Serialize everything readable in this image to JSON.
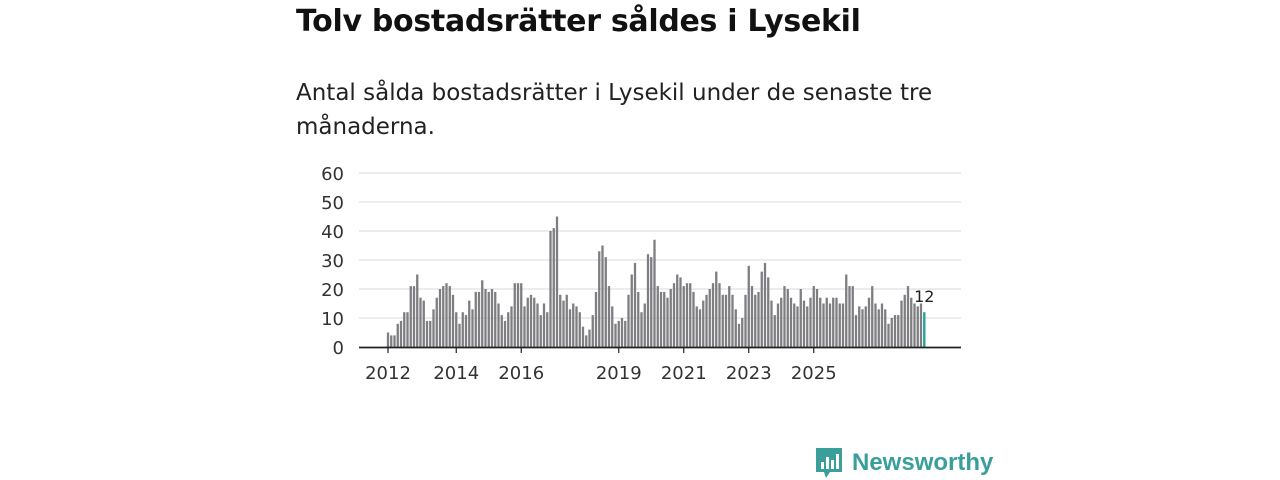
{
  "header": {
    "title": "Tolv bostadsrätter såldes i Lysekil",
    "subtitle": "Antal sålda bostadsrätter i Lysekil under de senaste tre månaderna."
  },
  "brand": {
    "name": "Newsworthy",
    "color": "#3a9f9a"
  },
  "colors": {
    "bar": "#7e7e82",
    "highlight": "#2aa198",
    "grid": "#d8d8d8",
    "axis": "#222222"
  },
  "chart_data": {
    "type": "bar",
    "title": "Tolv bostadsrätter såldes i Lysekil",
    "xlabel": "",
    "ylabel": "",
    "ylim": [
      0,
      60
    ],
    "yticks": [
      "0",
      "10",
      "20",
      "30",
      "40",
      "50",
      "60"
    ],
    "xticks": [
      {
        "label": "2012",
        "index": 0
      },
      {
        "label": "2014",
        "index": 21
      },
      {
        "label": "2016",
        "index": 41
      },
      {
        "label": "2019",
        "index": 71
      },
      {
        "label": "2021",
        "index": 91
      },
      {
        "label": "2023",
        "index": 111
      },
      {
        "label": "2025",
        "index": 131
      }
    ],
    "last_value_label": "12",
    "values": [
      5,
      4,
      4,
      8,
      9,
      12,
      12,
      21,
      21,
      25,
      17,
      16,
      9,
      9,
      13,
      17,
      20,
      21,
      22,
      21,
      18,
      12,
      8,
      12,
      11,
      16,
      13,
      19,
      19,
      23,
      20,
      19,
      20,
      19,
      15,
      11,
      9,
      12,
      14,
      22,
      22,
      22,
      14,
      17,
      18,
      17,
      15,
      11,
      15,
      12,
      40,
      41,
      45,
      18,
      16,
      18,
      13,
      15,
      14,
      12,
      7,
      4,
      6,
      11,
      19,
      33,
      35,
      31,
      21,
      14,
      8,
      9,
      10,
      9,
      18,
      25,
      29,
      19,
      12,
      15,
      32,
      31,
      37,
      21,
      19,
      19,
      17,
      20,
      22,
      25,
      24,
      21,
      22,
      22,
      19,
      14,
      13,
      16,
      18,
      20,
      22,
      26,
      22,
      18,
      18,
      21,
      18,
      13,
      8,
      10,
      18,
      28,
      21,
      18,
      19,
      26,
      29,
      24,
      16,
      11,
      15,
      17,
      21,
      20,
      17,
      15,
      14,
      20,
      16,
      14,
      17,
      21,
      20,
      17,
      15,
      17,
      15,
      17,
      17,
      15,
      15,
      25,
      21,
      21,
      11,
      14,
      13,
      14,
      17,
      21,
      15,
      13,
      15,
      13,
      8,
      10,
      11,
      11,
      16,
      18,
      21,
      17,
      15,
      14,
      15,
      12
    ]
  }
}
